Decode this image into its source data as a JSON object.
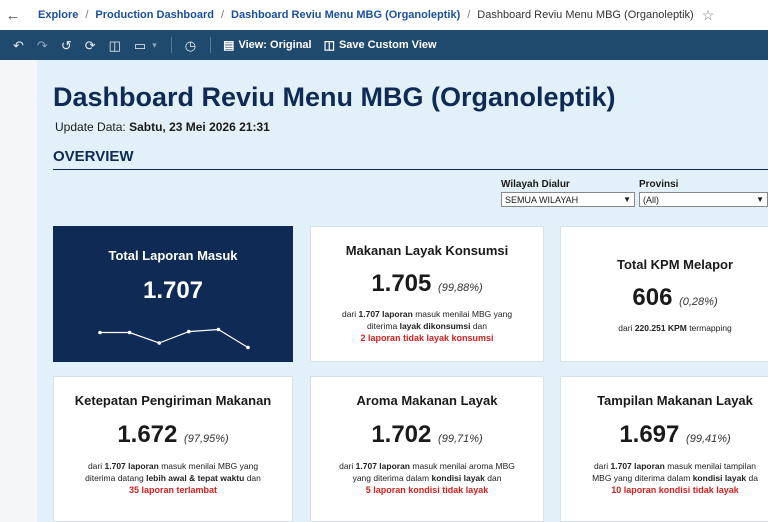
{
  "breadcrumb": {
    "items": [
      "Explore",
      "Production Dashboard",
      "Dashboard Reviu Menu MBG (Organoleptik)"
    ],
    "current": "Dashboard Reviu Menu MBG (Organoleptik)"
  },
  "toolbar": {
    "view_original": "View: Original",
    "save_custom_view": "Save Custom View"
  },
  "dashboard": {
    "title": "Dashboard Reviu Menu MBG (Organoleptik)",
    "update_label": "Update Data:",
    "update_value": "Sabtu, 23 Mei 2026 21:31",
    "section_title": "OVERVIEW"
  },
  "filters": {
    "wilayah": {
      "label": "Wilayah Dialur",
      "value": "SEMUA WILAYAH"
    },
    "provinsi": {
      "label": "Provinsi",
      "value": "(All)"
    }
  },
  "cards": {
    "total_laporan": {
      "title": "Total Laporan Masuk",
      "value": "1.707",
      "sparkline": [
        0.55,
        0.55,
        0.2,
        0.58,
        0.65,
        0.05
      ]
    },
    "makanan_layak": {
      "title": "Makanan Layak Konsumsi",
      "value": "1.705",
      "pct": "(99,88%)",
      "d1": "dari",
      "d2": "1.707 laporan",
      "d3": "masuk menilai MBG yang",
      "d4": "diterima",
      "d5": "layak dikonsumsi",
      "d6": "dan",
      "red_num": "2",
      "red_text": "laporan tidak layak konsumsi"
    },
    "kpm": {
      "title": "Total KPM Melapor",
      "value": "606",
      "pct": "(0,28%)",
      "d1": "dari",
      "d2": "220.251 KPM",
      "d3": "termapping"
    },
    "ketepatan": {
      "title": "Ketepatan Pengiriman Makanan",
      "value": "1.672",
      "pct": "(97,95%)",
      "d1": "dari",
      "d2": "1.707 laporan",
      "d3": "masuk menilai MBG yang",
      "d4": "diterima datang",
      "d5": "lebih awal & tepat waktu",
      "d6": "dan",
      "red_num": "35",
      "red_text": "laporan terlambat"
    },
    "aroma": {
      "title": "Aroma Makanan Layak",
      "value": "1.702",
      "pct": "(99,71%)",
      "d1": "dari",
      "d2": "1.707 laporan",
      "d3": "masuk menilai aroma MBG",
      "d4": "yang diterima dalam",
      "d5": "kondisi layak",
      "d6": "dan",
      "red_num": "5",
      "red_text": "laporan kondisi tidak layak"
    },
    "tampilan": {
      "title": "Tampilan Makanan Layak",
      "value": "1.697",
      "pct": "(99,41%)",
      "d1": "dari",
      "d2": "1.707 laporan",
      "d3": "masuk menilai tampilan",
      "d4": "MBG yang diterima dalam",
      "d5": "kondisi layak",
      "d6": "da",
      "red_num": "10",
      "red_text": "laporan kondisi tidak layak"
    }
  }
}
